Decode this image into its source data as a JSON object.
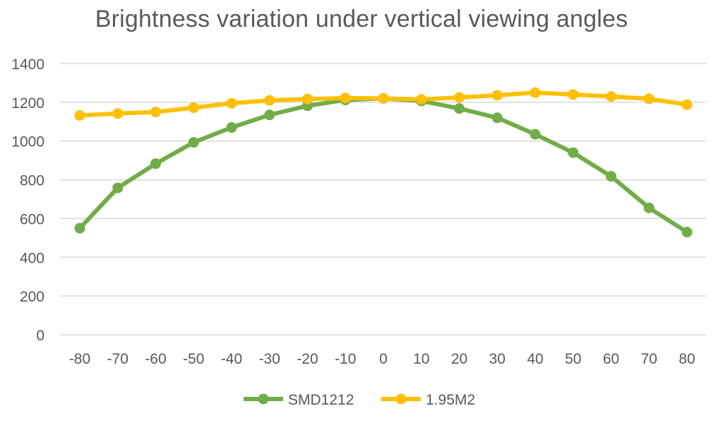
{
  "chart_data": {
    "type": "line",
    "title": "Brightness variation under vertical viewing angles",
    "x": [
      -80,
      -70,
      -60,
      -50,
      -40,
      -30,
      -20,
      -10,
      0,
      10,
      20,
      30,
      40,
      50,
      60,
      70,
      80
    ],
    "x_tick_labels": [
      "-80",
      "-70",
      "-60",
      "-50",
      "-40",
      "-30",
      "-20",
      "-10",
      "0",
      "10",
      "20",
      "30",
      "40",
      "50",
      "60",
      "70",
      "80"
    ],
    "ylim": [
      0,
      1400
    ],
    "y_ticks": [
      0,
      200,
      400,
      600,
      800,
      1000,
      1200,
      1400
    ],
    "y_tick_labels": [
      "0",
      "200",
      "400",
      "600",
      "800",
      "1000",
      "1200",
      "1400"
    ],
    "grid": true,
    "legend_position": "bottom",
    "series": [
      {
        "name": "SMD1212",
        "color": "#70AD47",
        "values": [
          550,
          758,
          883,
          993,
          1070,
          1135,
          1182,
          1212,
          1220,
          1207,
          1168,
          1120,
          1035,
          940,
          818,
          655,
          530
        ]
      },
      {
        "name": "1.95M2",
        "color": "#FFC000",
        "values": [
          1132,
          1142,
          1150,
          1172,
          1195,
          1210,
          1217,
          1222,
          1220,
          1215,
          1225,
          1236,
          1250,
          1240,
          1230,
          1218,
          1188
        ]
      }
    ]
  }
}
